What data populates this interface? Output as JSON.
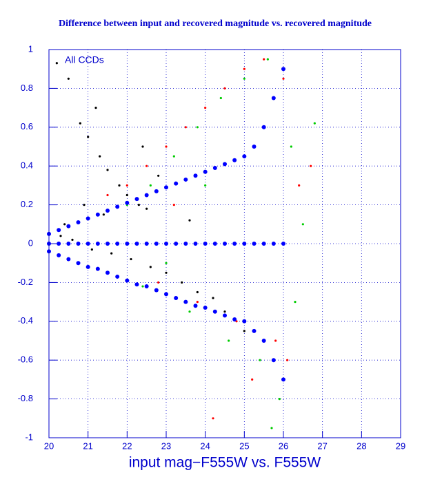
{
  "chart_data": {
    "type": "scatter",
    "title": "Difference between input and recovered magnitude vs. recovered magnitude",
    "x_label": "input mag−F555W vs. F555W",
    "annotation": "All CCDs",
    "xlim": [
      20,
      29
    ],
    "ylim": [
      -1,
      1
    ],
    "xticks": [
      20,
      21,
      22,
      23,
      24,
      25,
      26,
      27,
      28,
      29
    ],
    "yticks": [
      -1,
      -0.8,
      -0.6,
      -0.4,
      -0.2,
      0,
      0.2,
      0.4,
      0.6,
      0.8,
      1
    ],
    "grid": true,
    "series": [
      {
        "color": "#000000",
        "x": [
          20.2,
          20.5,
          20.8,
          21.0,
          21.3,
          21.5,
          21.8,
          22.0,
          22.3,
          22.5,
          20.3,
          20.6,
          21.1,
          21.6,
          22.1,
          22.6,
          23.0,
          23.4,
          23.8,
          24.2,
          20.4,
          20.9,
          21.4,
          22.8,
          24.5,
          25.0,
          25.5,
          21.2,
          22.4,
          23.6
        ],
        "values": [
          0.93,
          0.85,
          0.62,
          0.55,
          0.45,
          0.38,
          0.3,
          0.25,
          0.2,
          0.18,
          0.04,
          0.02,
          -0.03,
          -0.05,
          -0.08,
          -0.12,
          -0.15,
          -0.2,
          -0.25,
          -0.28,
          0.1,
          0.2,
          0.15,
          0.35,
          -0.35,
          -0.45,
          -0.5,
          0.7,
          0.5,
          0.12
        ]
      },
      {
        "color": "#ff0000",
        "x": [
          21.5,
          22.0,
          22.5,
          23.0,
          23.5,
          24.0,
          24.5,
          25.0,
          25.5,
          26.0,
          26.1,
          25.8,
          24.8,
          23.8,
          22.8,
          26.4,
          26.7,
          25.2,
          24.2,
          23.2
        ],
        "values": [
          0.25,
          0.3,
          0.4,
          0.5,
          0.6,
          0.7,
          0.8,
          0.9,
          0.95,
          0.85,
          -0.6,
          -0.5,
          -0.4,
          -0.3,
          -0.2,
          0.3,
          0.4,
          -0.7,
          -0.9,
          0.2
        ]
      },
      {
        "color": "#00cc00",
        "x": [
          22.0,
          22.6,
          23.2,
          23.8,
          24.4,
          25.0,
          25.6,
          26.0,
          26.2,
          26.5,
          26.8,
          25.4,
          24.6,
          23.6,
          22.4,
          25.9,
          24.0,
          23.0,
          26.3,
          25.7
        ],
        "values": [
          0.2,
          0.3,
          0.45,
          0.6,
          0.75,
          0.85,
          0.95,
          0.9,
          0.5,
          0.1,
          0.62,
          -0.6,
          -0.5,
          -0.35,
          -0.22,
          -0.8,
          0.3,
          -0.1,
          -0.3,
          -0.95
        ]
      },
      {
        "color": "#0000ff",
        "x": [
          20.0,
          20.25,
          20.5,
          20.75,
          21.0,
          21.25,
          21.5,
          21.75,
          22.0,
          22.25,
          22.5,
          22.75,
          23.0,
          23.25,
          23.5,
          23.75,
          24.0,
          24.25,
          24.5,
          24.75,
          25.0,
          25.25,
          25.5,
          25.75,
          26.0,
          20.0,
          20.25,
          20.5,
          20.75,
          21.0,
          21.25,
          21.5,
          21.75,
          22.0,
          22.25,
          22.5,
          22.75,
          23.0,
          23.25,
          23.5,
          23.75,
          24.0,
          24.25,
          24.5,
          24.75,
          25.0,
          25.25,
          25.5,
          25.75,
          26.0,
          20.0,
          20.25,
          20.5,
          20.75,
          21.0,
          21.25,
          21.5,
          21.75,
          22.0,
          22.25,
          22.5,
          22.75,
          23.0,
          23.25,
          23.5,
          23.75,
          24.0,
          24.25,
          24.5,
          24.75,
          25.0,
          25.25,
          25.5,
          25.75,
          26.0
        ],
        "values": [
          0.05,
          0.07,
          0.09,
          0.11,
          0.13,
          0.15,
          0.17,
          0.19,
          0.21,
          0.23,
          0.25,
          0.27,
          0.29,
          0.31,
          0.33,
          0.35,
          0.37,
          0.39,
          0.41,
          0.43,
          0.45,
          0.5,
          0.6,
          0.75,
          0.9,
          0,
          0,
          0,
          0,
          0,
          0,
          0,
          0,
          0,
          0,
          0,
          0,
          0,
          0,
          0,
          0,
          0,
          0,
          0,
          0,
          0,
          0,
          0,
          0,
          0,
          -0.04,
          -0.06,
          -0.08,
          -0.1,
          -0.12,
          -0.13,
          -0.15,
          -0.17,
          -0.19,
          -0.21,
          -0.22,
          -0.24,
          -0.26,
          -0.28,
          -0.3,
          -0.32,
          -0.33,
          -0.35,
          -0.37,
          -0.39,
          -0.4,
          -0.45,
          -0.5,
          -0.6,
          -0.7
        ]
      }
    ]
  }
}
